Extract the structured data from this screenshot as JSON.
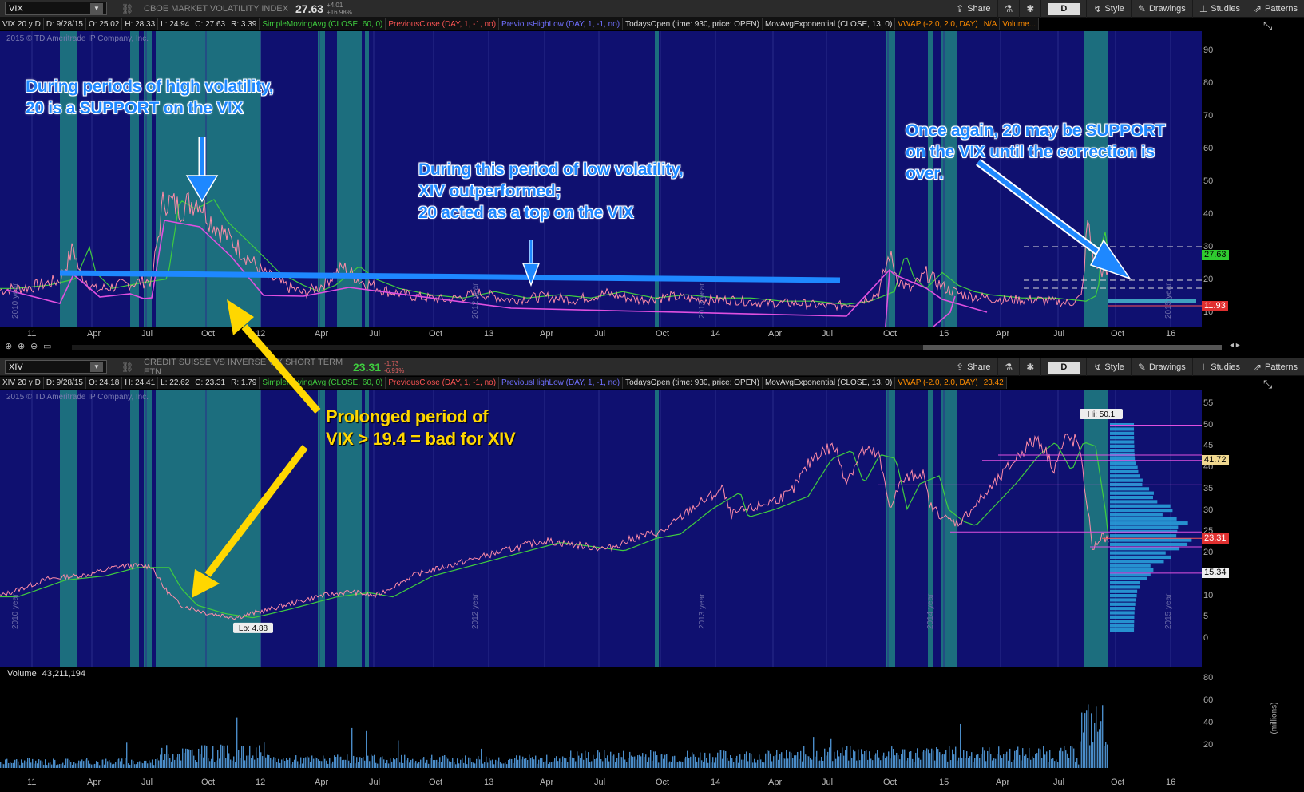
{
  "colors": {
    "pane_bg": "#0f1070",
    "price_line": "#ff8ca8",
    "sma_line": "#3fcc3f",
    "prev_close": "#ff5555",
    "prev_highlow": "#6f6fff",
    "highlight": "#1e88ff",
    "teal_band": "#1e7f80",
    "volume_bar": "#4a8cc8",
    "annot_yellow": "#ffd700"
  },
  "toolbar_top": {
    "symbol": "VIX",
    "description": "CBOE MARKET VOLATILITY INDEX",
    "last": "27.63",
    "change_pos": "+4.01",
    "change_pct": "+16.98%",
    "buttons": {
      "share": "Share",
      "period": "D",
      "style": "Style",
      "drawings": "Drawings",
      "studies": "Studies",
      "patterns": "Patterns"
    }
  },
  "toolbar_bottom": {
    "symbol": "XIV",
    "description": "CREDIT SUISSE VS INVERSE VIX SHORT TERM ETN",
    "last": "23.31",
    "change_pos": "-1.73",
    "change_pct": "-6.91%",
    "buttons": {
      "share": "Share",
      "period": "D",
      "style": "Style",
      "drawings": "Drawings",
      "studies": "Studies",
      "patterns": "Patterns"
    }
  },
  "vix_studies": {
    "head": "VIX 20 y D",
    "ohlc": [
      "D: 9/28/15",
      "O: 25.02",
      "H: 28.33",
      "L: 24.94",
      "C: 27.63",
      "R: 3.39"
    ],
    "sma": "SimpleMovingAvg (CLOSE, 60, 0)",
    "prev_close": "PreviousClose (DAY, 1, -1, no)",
    "prev_highlow": "PreviousHighLow (DAY, 1, -1, no)",
    "todays_open": "TodaysOpen (time: 930, price: OPEN)",
    "mov_exp": "MovAvgExponential (CLOSE, 13, 0)",
    "vwap": "VWAP (-2.0, 2.0, DAY)",
    "vwap_val": "N/A",
    "volume": "Volume..."
  },
  "xiv_studies": {
    "head": "XIV 20 y D",
    "ohlc": [
      "D: 9/28/15",
      "O: 24.18",
      "H: 24.41",
      "L: 22.62",
      "C: 23.31",
      "R: 1.79"
    ],
    "sma": "SimpleMovingAvg (CLOSE, 60, 0)",
    "prev_close": "PreviousClose (DAY, 1, -1, no)",
    "prev_highlow": "PreviousHighLow (DAY, 1, -1, no)",
    "todays_open": "TodaysOpen (time: 930, price: OPEN)",
    "mov_exp": "MovAvgExponential (CLOSE, 13, 0)",
    "vwap": "VWAP (-2.0, 2.0, DAY)",
    "vwap_val": "23.42"
  },
  "copyright": "2015 © TD Ameritrade IP Company, Inc.",
  "vix_axis": [
    "90",
    "80",
    "70",
    "60",
    "50",
    "40",
    "30",
    "20",
    "10"
  ],
  "xiv_axis": [
    "55",
    "50",
    "45",
    "40",
    "35",
    "30",
    "25",
    "20",
    "15",
    "10",
    "5",
    "0"
  ],
  "vol_axis": [
    "80",
    "60",
    "40",
    "20"
  ],
  "vol_unit": "(millions)",
  "volume_label": "Volume",
  "volume_value": "43,211,194",
  "time_labels": [
    "11",
    "Apr",
    "Jul",
    "Oct",
    "12",
    "Apr",
    "Jul",
    "Oct",
    "13",
    "Apr",
    "Jul",
    "Oct",
    "14",
    "Apr",
    "Jul",
    "Oct",
    "15",
    "Apr",
    "Jul",
    "Oct",
    "16"
  ],
  "vix_tags": {
    "last": "27.63",
    "low": "11.93"
  },
  "xiv_tags": {
    "t1": "41.72",
    "last": "23.31",
    "t3": "15.34"
  },
  "xiv_hi": "Hi: 50.1",
  "xiv_lo": "Lo: 4.88",
  "year_marks_vix": [
    "2010 year",
    "2012 year",
    "2013 year",
    "2015 year"
  ],
  "year_marks_xiv": [
    "2010 year",
    "2012 year",
    "2013 year",
    "2014 year",
    "2015 year"
  ],
  "annotations": {
    "a1": [
      "During periods of high volatility,",
      "20 is a SUPPORT on the VIX"
    ],
    "a2": [
      "During this period of low volatility,",
      "XIV outperformed;",
      "20 acted as a top on the VIX"
    ],
    "a3": [
      "Once again, 20 may be SUPPORT",
      "on the VIX until the correction is",
      "over."
    ],
    "a4": [
      "Prolonged period of",
      "VIX > 19.4 = bad for XIV"
    ]
  }
}
